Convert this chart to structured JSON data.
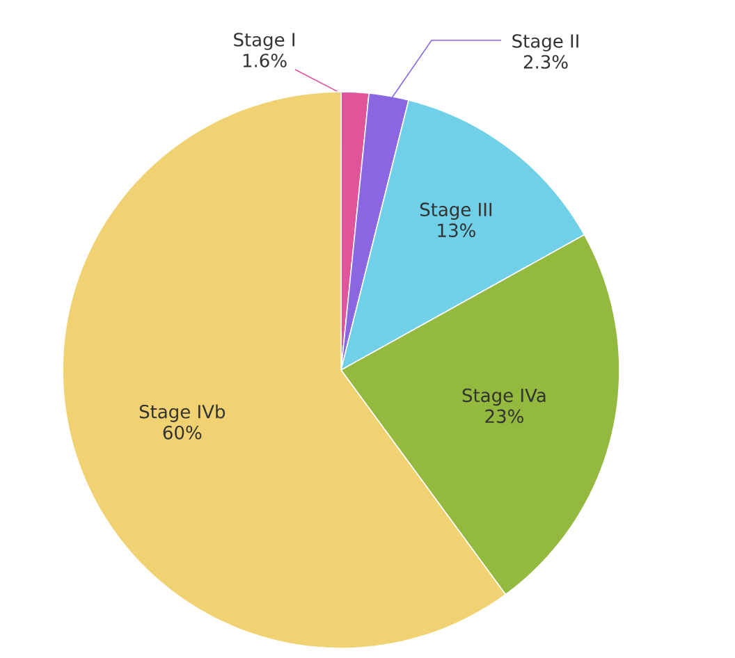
{
  "chart_data": {
    "type": "pie",
    "categories": [
      "Stage I",
      "Stage II",
      "Stage III",
      "Stage IVa",
      "Stage IVb"
    ],
    "values": [
      1.6,
      2.3,
      13,
      23,
      60
    ],
    "colors": [
      "#e0559a",
      "#8a66e0",
      "#6fd0e8",
      "#93b93e",
      "#f0d272"
    ],
    "value_labels": [
      "1.6%",
      "2.3%",
      "13%",
      "23%",
      "60%"
    ]
  }
}
